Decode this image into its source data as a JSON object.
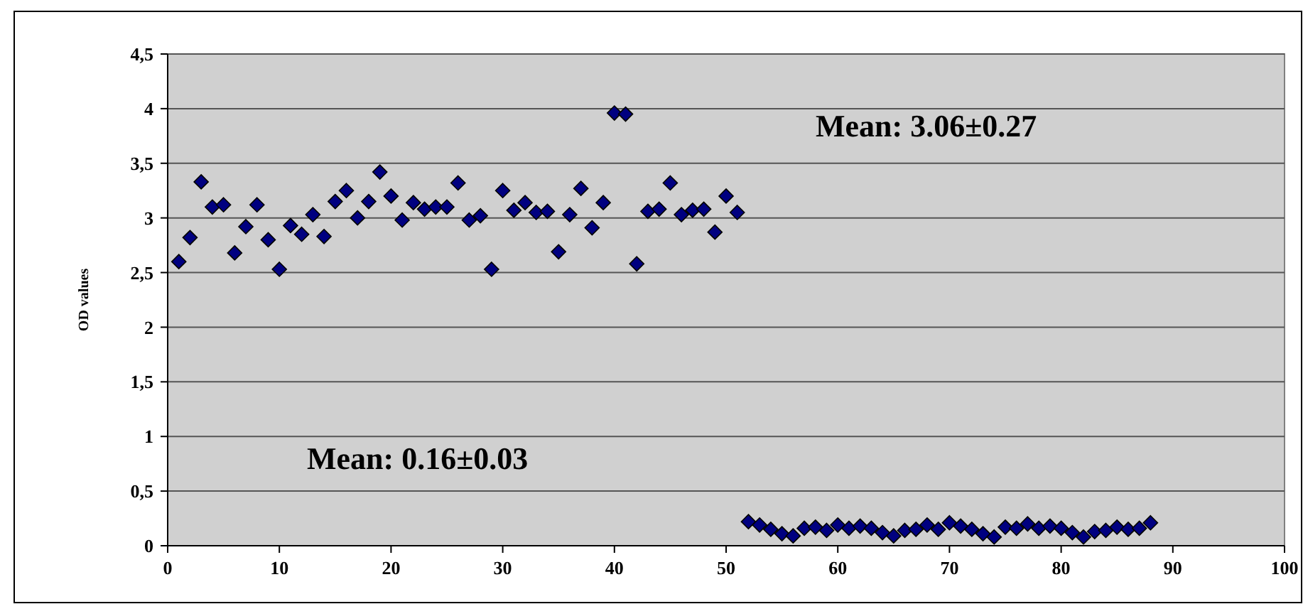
{
  "chart_data": {
    "type": "scatter",
    "ylabel": "OD values",
    "marker": "diamond",
    "grid": "y",
    "xlim": [
      0,
      100
    ],
    "xticks": [
      0,
      10,
      20,
      30,
      40,
      50,
      60,
      70,
      80,
      90,
      100
    ],
    "ylim": [
      0,
      4.5
    ],
    "yticks": [
      0,
      {
        "value": 0.5,
        "label": "0,5"
      },
      1,
      {
        "value": 1.5,
        "label": "1,5"
      },
      2,
      {
        "value": 2.5,
        "label": "2,5"
      },
      3,
      {
        "value": 3.5,
        "label": "3,5"
      },
      4,
      {
        "value": 4.5,
        "label": "4,5"
      }
    ],
    "x": [
      1,
      2,
      3,
      4,
      5,
      6,
      7,
      8,
      9,
      10,
      11,
      12,
      13,
      14,
      15,
      16,
      17,
      18,
      19,
      20,
      21,
      22,
      23,
      24,
      25,
      26,
      27,
      28,
      29,
      30,
      31,
      32,
      33,
      34,
      35,
      36,
      37,
      38,
      39,
      40,
      41,
      42,
      43,
      44,
      45,
      46,
      47,
      48,
      49,
      50,
      51,
      52,
      53,
      54,
      55,
      56,
      57,
      58,
      59,
      60,
      61,
      62,
      63,
      64,
      65,
      66,
      67,
      68,
      69,
      70,
      71,
      72,
      73,
      74,
      75,
      76,
      77,
      78,
      79,
      80,
      81,
      82,
      83,
      84,
      85,
      86,
      87,
      88
    ],
    "series": [
      {
        "color": "#000080",
        "values": [
          2.6,
          2.82,
          3.33,
          3.1,
          3.12,
          2.68,
          2.92,
          3.12,
          2.8,
          2.53,
          2.93,
          2.85,
          3.03,
          2.83,
          3.15,
          3.25,
          3.0,
          3.15,
          3.42,
          3.2,
          2.98,
          3.14,
          3.08,
          3.1,
          3.1,
          3.32,
          2.98,
          3.02,
          2.53,
          3.25,
          3.07,
          3.14,
          3.05,
          3.06,
          2.69,
          3.03,
          3.27,
          2.91,
          3.14,
          3.96,
          3.95,
          2.58,
          3.06,
          3.08,
          3.32,
          3.03,
          3.07,
          3.08,
          2.87,
          3.2,
          3.05,
          0.22,
          0.19,
          0.15,
          0.11,
          0.09,
          0.16,
          0.17,
          0.14,
          0.19,
          0.16,
          0.18,
          0.16,
          0.12,
          0.09,
          0.14,
          0.15,
          0.19,
          0.15,
          0.21,
          0.18,
          0.15,
          0.11,
          0.08,
          0.17,
          0.16,
          0.2,
          0.16,
          0.18,
          0.16,
          0.12,
          0.08,
          0.13,
          0.14,
          0.17,
          0.15,
          0.16,
          0.21
        ]
      }
    ],
    "annotations": [
      "Mean: 3.06±0.27",
      "Mean: 0.16±0.03"
    ]
  }
}
